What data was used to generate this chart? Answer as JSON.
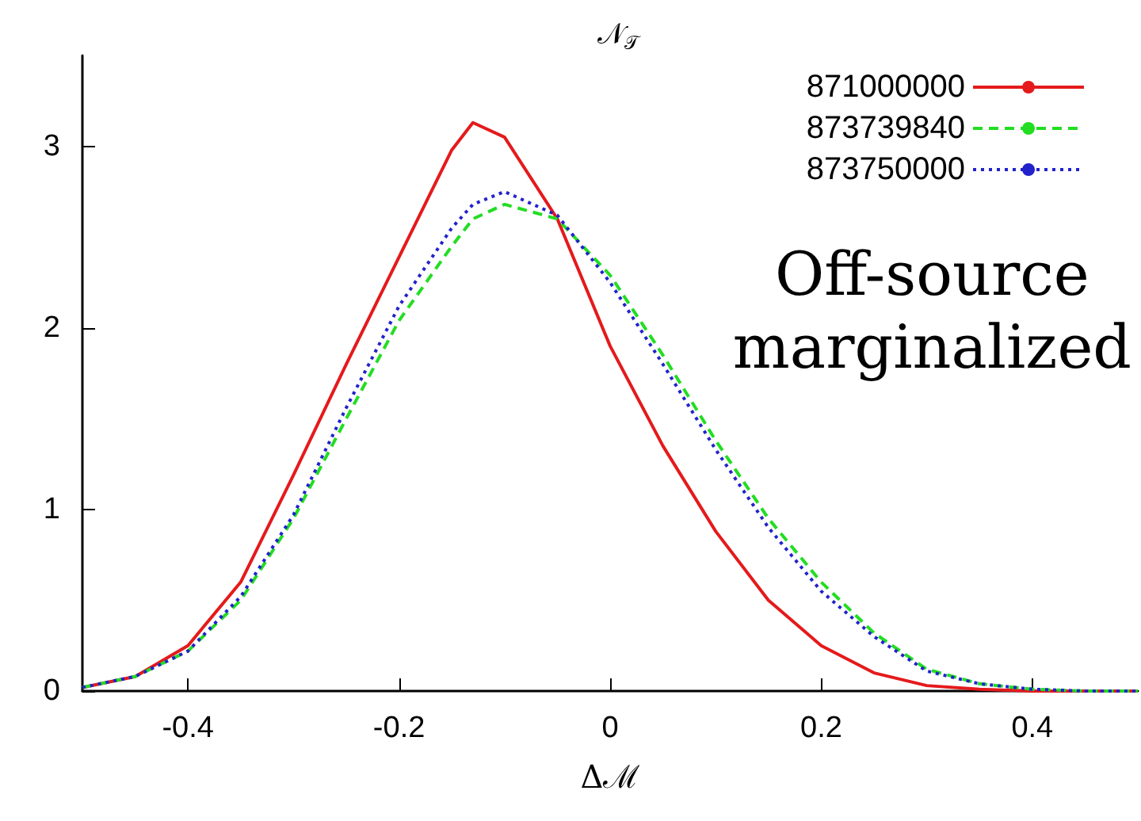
{
  "chart_data": {
    "type": "line",
    "title": "𝒩$_{𝒯}$",
    "xlabel": "Δℳ",
    "annotations": [
      "Off-source\nmarginalized"
    ],
    "x": [
      -0.5,
      -0.45,
      -0.4,
      -0.35,
      -0.3,
      -0.25,
      -0.2,
      -0.15,
      -0.13,
      -0.1,
      -0.05,
      0,
      0.05,
      0.1,
      0.15,
      0.2,
      0.25,
      0.3,
      0.35,
      0.4,
      0.45,
      0.5
    ],
    "series": [
      {
        "name": "871000000",
        "color": "#e41a1c",
        "line_style": "solid",
        "values": [
          0.02,
          0.08,
          0.25,
          0.6,
          1.19,
          1.8,
          2.39,
          2.98,
          3.13,
          3.05,
          2.6,
          1.9,
          1.35,
          0.88,
          0.5,
          0.25,
          0.1,
          0.03,
          0.01,
          0,
          0,
          0
        ]
      },
      {
        "name": "873739840",
        "color": "#22dd22",
        "line_style": "dashed",
        "values": [
          0.02,
          0.08,
          0.22,
          0.5,
          0.95,
          1.5,
          2.04,
          2.45,
          2.6,
          2.68,
          2.6,
          2.29,
          1.85,
          1.38,
          0.95,
          0.6,
          0.32,
          0.12,
          0.04,
          0.01,
          0,
          0
        ]
      },
      {
        "name": "873750000",
        "color": "#2222cc",
        "line_style": "dotted",
        "values": [
          0.02,
          0.08,
          0.22,
          0.52,
          0.97,
          1.56,
          2.12,
          2.55,
          2.68,
          2.75,
          2.62,
          2.25,
          1.8,
          1.33,
          0.9,
          0.55,
          0.3,
          0.11,
          0.04,
          0.01,
          0,
          0
        ]
      }
    ],
    "xlim": [
      -0.5,
      0.5
    ],
    "xticks": [
      -0.4,
      -0.2,
      0,
      0.2,
      0.4
    ],
    "ylim": [
      0,
      3.5
    ],
    "yticks": [
      0,
      1,
      2,
      3
    ],
    "grid": false,
    "legend": "top right",
    "marker": "none"
  }
}
